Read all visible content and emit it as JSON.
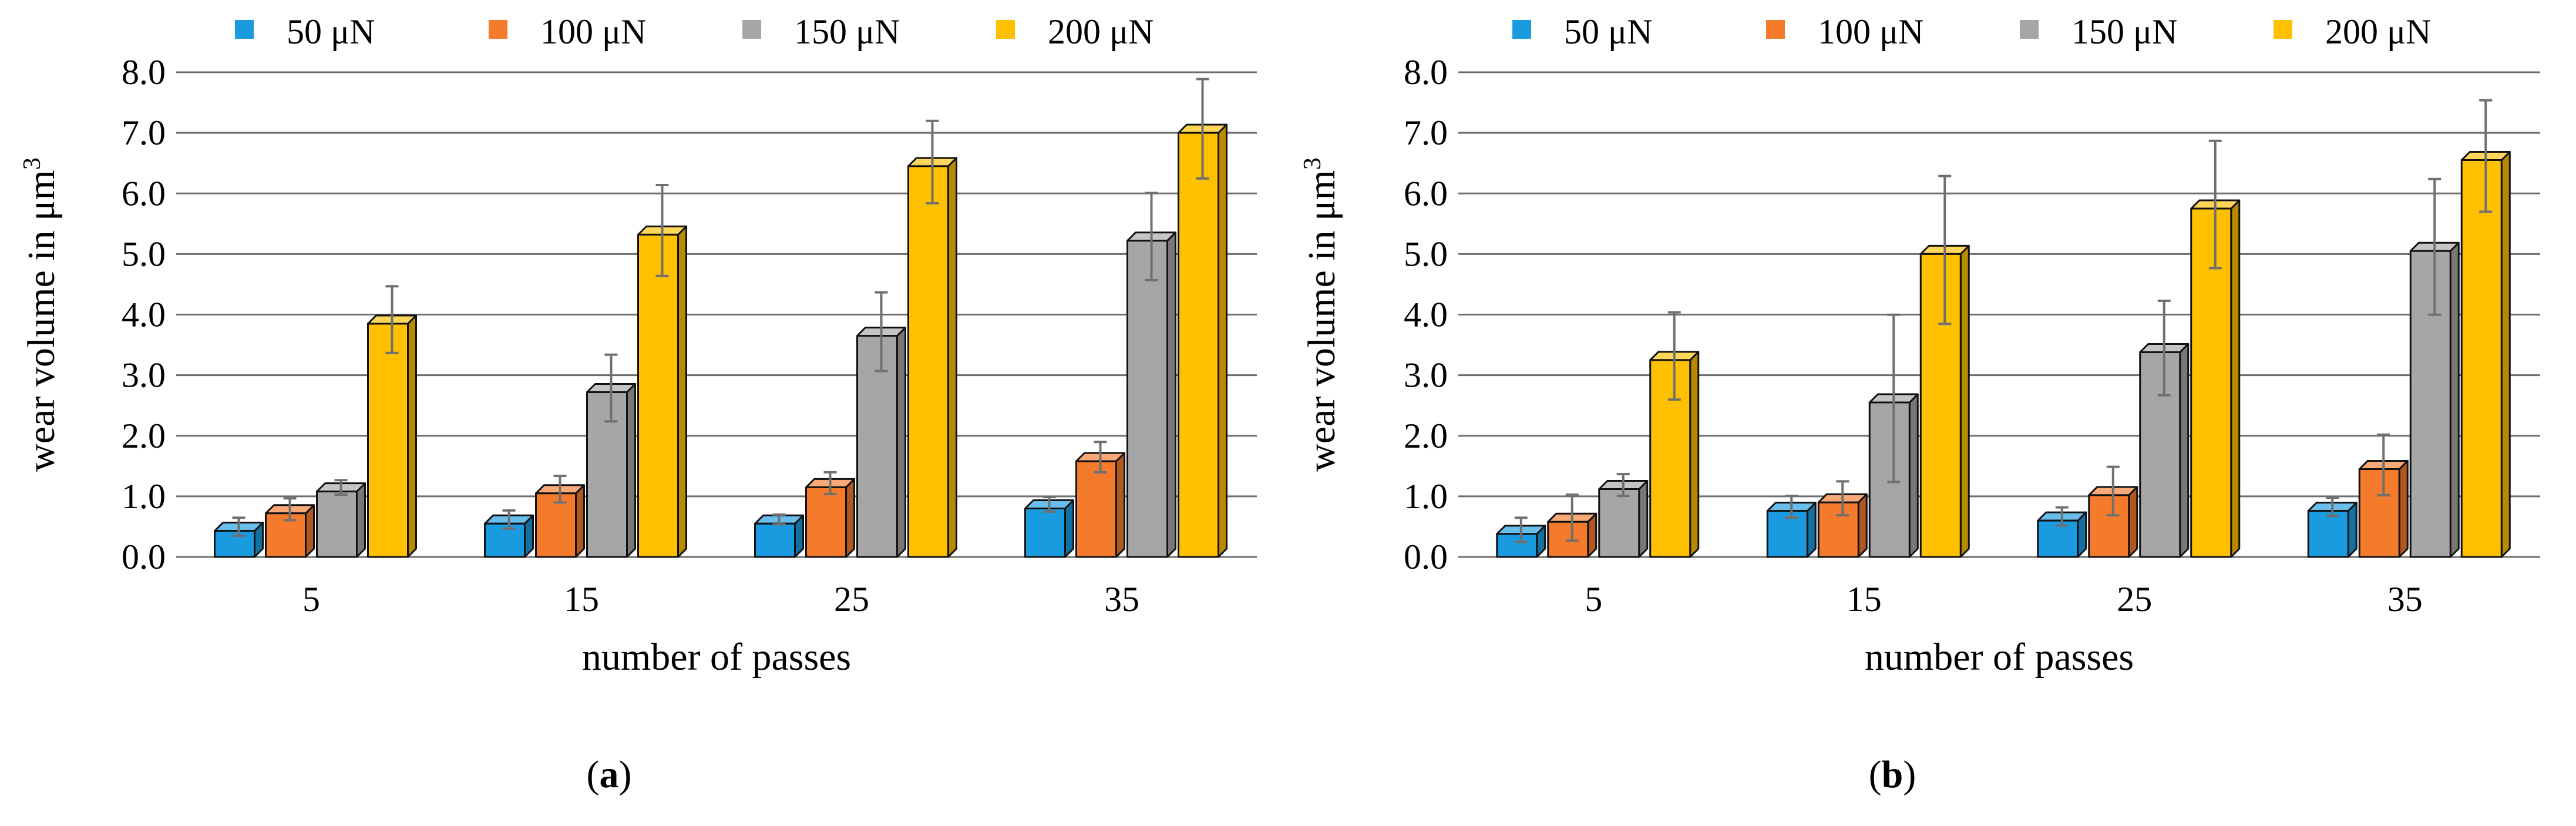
{
  "chart_data": [
    {
      "type": "bar",
      "panel_label": "a",
      "xlabel": "number of passes",
      "ylabel": "wear volume in μm",
      "ylabel_sup": "3",
      "ylim": [
        0,
        8
      ],
      "yticks": [
        "0.0",
        "1.0",
        "2.0",
        "3.0",
        "4.0",
        "5.0",
        "6.0",
        "7.0",
        "8.0"
      ],
      "categories": [
        "5",
        "15",
        "25",
        "35"
      ],
      "series": [
        {
          "name": "50 μN",
          "color": "#1a9be0",
          "values": [
            0.43,
            0.55,
            0.55,
            0.8
          ],
          "errors": [
            0.15,
            0.15,
            0.08,
            0.12
          ]
        },
        {
          "name": "100 μN",
          "color": "#f47a2c",
          "values": [
            0.72,
            1.05,
            1.15,
            1.58
          ],
          "errors": [
            0.18,
            0.22,
            0.18,
            0.25
          ]
        },
        {
          "name": "150 μN",
          "color": "#a6a6a6",
          "values": [
            1.08,
            2.72,
            3.65,
            5.22
          ],
          "errors": [
            0.12,
            0.55,
            0.65,
            0.72
          ]
        },
        {
          "name": "200 μN",
          "color": "#ffc000",
          "values": [
            3.85,
            5.32,
            6.45,
            7.0
          ],
          "errors": [
            0.55,
            0.75,
            0.68,
            0.82
          ]
        }
      ]
    },
    {
      "type": "bar",
      "panel_label": "b",
      "xlabel": "number of passes",
      "ylabel": "wear volume in μm",
      "ylabel_sup": "3",
      "ylim": [
        0,
        8
      ],
      "yticks": [
        "0.0",
        "1.0",
        "2.0",
        "3.0",
        "4.0",
        "5.0",
        "6.0",
        "7.0",
        "8.0"
      ],
      "categories": [
        "5",
        "15",
        "25",
        "35"
      ],
      "series": [
        {
          "name": "50 μN",
          "color": "#1a9be0",
          "values": [
            0.38,
            0.76,
            0.6,
            0.76
          ],
          "errors": [
            0.2,
            0.18,
            0.15,
            0.15
          ]
        },
        {
          "name": "100 μN",
          "color": "#f47a2c",
          "values": [
            0.58,
            0.9,
            1.02,
            1.45
          ],
          "errors": [
            0.38,
            0.28,
            0.4,
            0.5
          ]
        },
        {
          "name": "150 μN",
          "color": "#a6a6a6",
          "values": [
            1.12,
            2.55,
            3.38,
            5.05
          ],
          "errors": [
            0.18,
            1.38,
            0.78,
            1.12
          ]
        },
        {
          "name": "200 μN",
          "color": "#ffc000",
          "values": [
            3.25,
            5.0,
            5.75,
            6.55
          ],
          "errors": [
            0.72,
            1.22,
            1.05,
            0.92
          ]
        }
      ]
    }
  ]
}
